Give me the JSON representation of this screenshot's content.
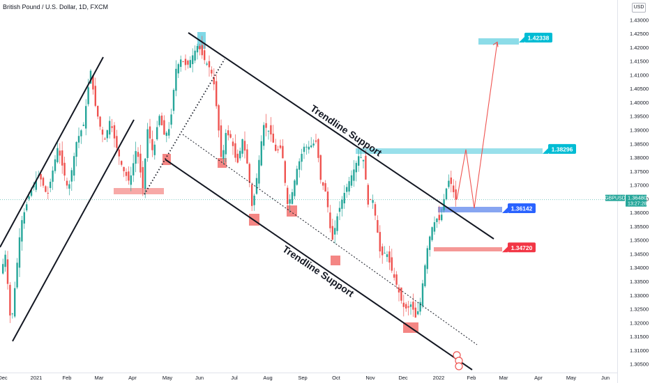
{
  "header": {
    "title": "British Pound / U.S. Dollar, 1D, FXCM",
    "currency": "USD"
  },
  "colors": {
    "up": "#26a69a",
    "down": "#ef5350",
    "cyan": "#00bcd4",
    "cyan_zone": "#7fd8e6",
    "blue_zone": "#7a9bf0",
    "red_zone": "#ef5350",
    "red_box": "#f23645",
    "blue_box": "#2962ff",
    "target_line": "#ef5350",
    "guide_line": "#131722"
  },
  "chart_data": {
    "type": "candlestick",
    "symbol": "GBPUSD",
    "timeframe": "1D",
    "x_ticks": [
      "Dec",
      "2021",
      "Feb",
      "Mar",
      "Apr",
      "May",
      "Jun",
      "Jul",
      "Aug",
      "Sep",
      "Oct",
      "Nov",
      "Dec",
      "2022",
      "Feb",
      "Mar",
      "Apr",
      "May",
      "Jun"
    ],
    "y_ticks": [
      "1.43000",
      "1.42500",
      "1.42000",
      "1.41500",
      "1.41000",
      "1.40500",
      "1.40000",
      "1.39500",
      "1.39000",
      "1.38500",
      "1.38000",
      "1.37500",
      "1.37000",
      "1.36500",
      "1.36000",
      "1.35500",
      "1.35000",
      "1.34500",
      "1.34000",
      "1.33500",
      "1.33000",
      "1.32500",
      "1.32000",
      "1.31500",
      "1.31000",
      "1.30500"
    ],
    "y_range": [
      1.302,
      1.4335
    ],
    "price_path": [
      [
        0,
        1.335
      ],
      [
        10,
        1.345
      ],
      [
        18,
        1.318
      ],
      [
        32,
        1.356
      ],
      [
        45,
        1.367
      ],
      [
        58,
        1.374
      ],
      [
        70,
        1.366
      ],
      [
        85,
        1.384
      ],
      [
        100,
        1.368
      ],
      [
        112,
        1.386
      ],
      [
        122,
        1.392
      ],
      [
        132,
        1.412
      ],
      [
        138,
        1.4
      ],
      [
        145,
        1.392
      ],
      [
        152,
        1.386
      ],
      [
        160,
        1.394
      ],
      [
        168,
        1.385
      ],
      [
        178,
        1.376
      ],
      [
        188,
        1.371
      ],
      [
        198,
        1.384
      ],
      [
        207,
        1.369
      ],
      [
        214,
        1.391
      ],
      [
        222,
        1.381
      ],
      [
        230,
        1.396
      ],
      [
        238,
        1.388
      ],
      [
        246,
        1.391
      ],
      [
        254,
        1.412
      ],
      [
        262,
        1.416
      ],
      [
        270,
        1.413
      ],
      [
        278,
        1.417
      ],
      [
        286,
        1.421
      ],
      [
        294,
        1.416
      ],
      [
        302,
        1.413
      ],
      [
        308,
        1.409
      ],
      [
        314,
        1.395
      ],
      [
        320,
        1.378
      ],
      [
        326,
        1.389
      ],
      [
        334,
        1.387
      ],
      [
        342,
        1.377
      ],
      [
        350,
        1.387
      ],
      [
        358,
        1.376
      ],
      [
        364,
        1.361
      ],
      [
        372,
        1.376
      ],
      [
        380,
        1.392
      ],
      [
        390,
        1.389
      ],
      [
        398,
        1.382
      ],
      [
        406,
        1.384
      ],
      [
        414,
        1.363
      ],
      [
        420,
        1.366
      ],
      [
        428,
        1.376
      ],
      [
        438,
        1.384
      ],
      [
        446,
        1.384
      ],
      [
        456,
        1.386
      ],
      [
        462,
        1.372
      ],
      [
        470,
        1.367
      ],
      [
        478,
        1.349
      ],
      [
        486,
        1.359
      ],
      [
        494,
        1.366
      ],
      [
        502,
        1.371
      ],
      [
        510,
        1.376
      ],
      [
        517,
        1.381
      ],
      [
        524,
        1.379
      ],
      [
        530,
        1.363
      ],
      [
        536,
        1.366
      ],
      [
        542,
        1.356
      ],
      [
        548,
        1.344
      ],
      [
        556,
        1.346
      ],
      [
        564,
        1.339
      ],
      [
        572,
        1.333
      ],
      [
        580,
        1.326
      ],
      [
        586,
        1.325
      ],
      [
        592,
        1.327
      ],
      [
        598,
        1.322
      ],
      [
        604,
        1.326
      ],
      [
        610,
        1.338
      ],
      [
        616,
        1.349
      ],
      [
        622,
        1.355
      ],
      [
        628,
        1.358
      ],
      [
        634,
        1.357
      ],
      [
        640,
        1.367
      ],
      [
        646,
        1.372
      ],
      [
        650,
        1.37
      ],
      [
        655,
        1.3648
      ]
    ],
    "last_price": 1.3648,
    "last_label": "1.36480",
    "countdown": "13:27:28",
    "levels": [
      {
        "value": 1.42338,
        "label": "1.42338",
        "color": "cyan"
      },
      {
        "value": 1.38296,
        "label": "1.38296",
        "color": "cyan"
      },
      {
        "value": 1.36142,
        "label": "1.36142",
        "color": "blue"
      },
      {
        "value": 1.3472,
        "label": "1.34720",
        "color": "red"
      }
    ],
    "projection_path": [
      [
        655,
        1.3648
      ],
      [
        668,
        1.383
      ],
      [
        680,
        1.3617
      ],
      [
        713,
        1.422
      ]
    ],
    "annotations": [
      "Trendline Support",
      "Trendline Support"
    ]
  }
}
